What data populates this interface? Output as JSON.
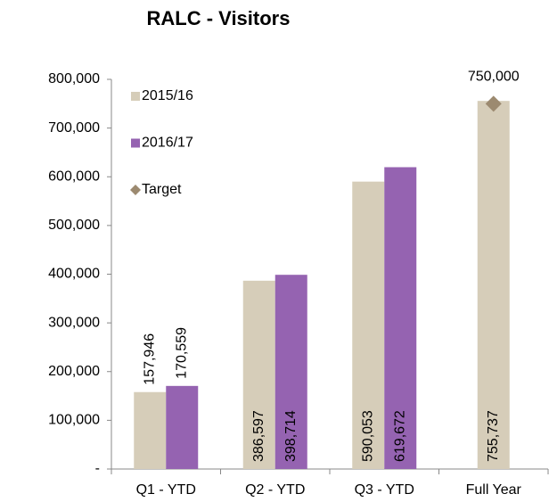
{
  "chart_data": {
    "type": "bar",
    "title": "RALC - Visitors",
    "categories": [
      "Q1 - YTD",
      "Q2 - YTD",
      "Q3 - YTD",
      "Full Year"
    ],
    "series": [
      {
        "name": "2015/16",
        "color": "#d6cdb9",
        "values": [
          157946,
          386597,
          590053,
          755737
        ],
        "value_labels": [
          "157,946",
          "386,597",
          "590,053",
          "755,737"
        ]
      },
      {
        "name": "2016/17",
        "color": "#9563b1",
        "values": [
          170559,
          398714,
          619672,
          null
        ],
        "value_labels": [
          "170,559",
          "398,714",
          "619,672",
          null
        ]
      },
      {
        "name": "Target",
        "type": "scatter",
        "marker": "diamond",
        "color": "#9c8a70",
        "values": [
          null,
          null,
          null,
          750000
        ],
        "value_labels": [
          null,
          null,
          null,
          "750,000"
        ]
      }
    ],
    "ylim": [
      0,
      800000
    ],
    "yticks": [
      {
        "value": 0,
        "label": "-"
      },
      {
        "value": 100000,
        "label": "100,000"
      },
      {
        "value": 200000,
        "label": "200,000"
      },
      {
        "value": 300000,
        "label": "300,000"
      },
      {
        "value": 400000,
        "label": "400,000"
      },
      {
        "value": 500000,
        "label": "500,000"
      },
      {
        "value": 600000,
        "label": "600,000"
      },
      {
        "value": 700000,
        "label": "700,000"
      },
      {
        "value": 800000,
        "label": "800,000"
      }
    ],
    "legend": "upper left"
  }
}
